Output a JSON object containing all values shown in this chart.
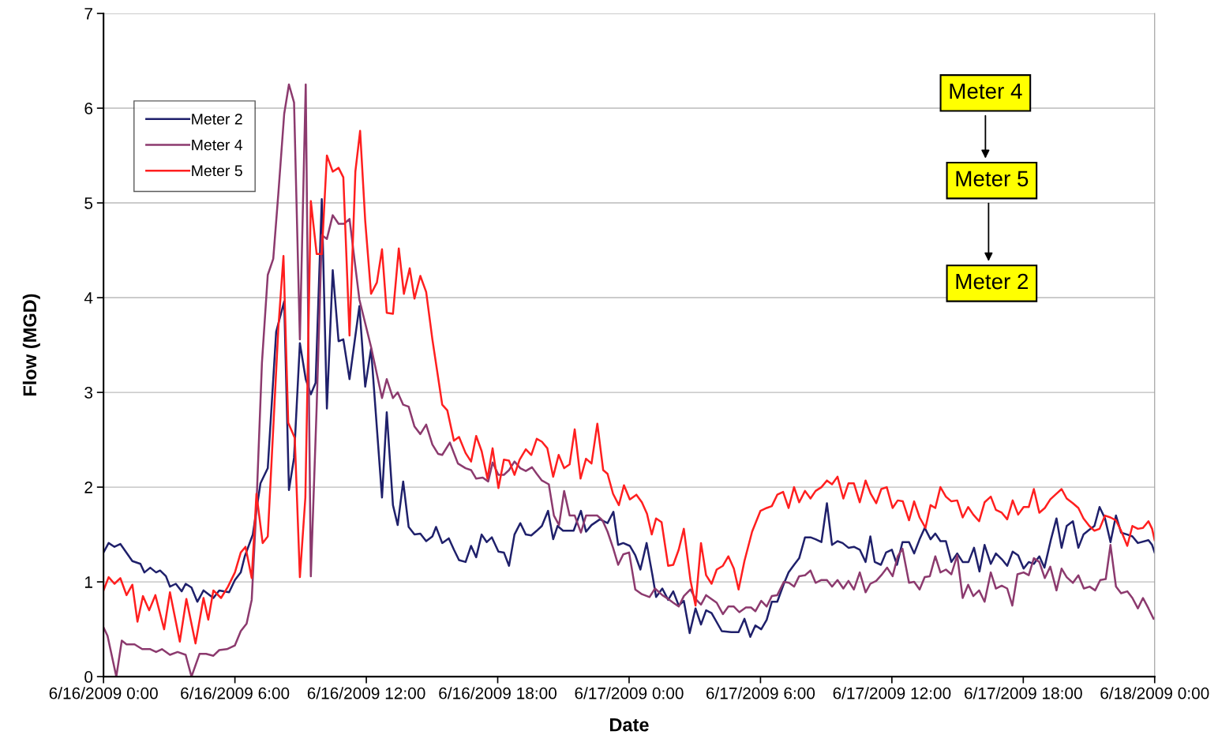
{
  "chart_data": {
    "type": "line",
    "xlabel": "Date",
    "ylabel": "Flow (MGD)",
    "xlim": [
      "2009-06-16T00:00",
      "2009-06-18T00:00"
    ],
    "ylim": [
      0,
      7
    ],
    "yticks": [
      0,
      1,
      2,
      3,
      4,
      5,
      6,
      7
    ],
    "xticks": [
      {
        "value": "2009-06-16T00:00",
        "label": "6/16/2009 0:00"
      },
      {
        "value": "2009-06-16T06:00",
        "label": "6/16/2009 6:00"
      },
      {
        "value": "2009-06-16T12:00",
        "label": "6/16/2009 12:00"
      },
      {
        "value": "2009-06-16T18:00",
        "label": "6/16/2009 18:00"
      },
      {
        "value": "2009-06-17T00:00",
        "label": "6/17/2009 0:00"
      },
      {
        "value": "2009-06-17T06:00",
        "label": "6/17/2009 6:00"
      },
      {
        "value": "2009-06-17T12:00",
        "label": "6/17/2009 12:00"
      },
      {
        "value": "2009-06-17T18:00",
        "label": "6/17/2009 18:00"
      },
      {
        "value": "2009-06-18T00:00",
        "label": "6/18/2009 0:00"
      }
    ],
    "grid": "y",
    "legend": "top left",
    "marker": "none",
    "line_style": "solid",
    "annotations": [
      "Meter 4",
      "Meter 5",
      "Meter 2"
    ],
    "series": [
      {
        "name": "Meter 2",
        "color": "#1f206b",
        "x": [
          "2009-06-16T00:00",
          "2009-06-16T00:14",
          "2009-06-16T00:30",
          "2009-06-16T00:46",
          "2009-06-16T01:19",
          "2009-06-16T01:41",
          "2009-06-16T01:52",
          "2009-06-16T02:08",
          "2009-06-16T02:24",
          "2009-06-16T02:35",
          "2009-06-16T02:51",
          "2009-06-16T03:02",
          "2009-06-16T03:18",
          "2009-06-16T03:34",
          "2009-06-16T03:45",
          "2009-06-16T04:01",
          "2009-06-16T04:17",
          "2009-06-16T04:34",
          "2009-06-16T05:01",
          "2009-06-16T05:17",
          "2009-06-16T05:44",
          "2009-06-16T06:00",
          "2009-06-16T06:16",
          "2009-06-16T06:27",
          "2009-06-16T06:49",
          "2009-06-16T07:10",
          "2009-06-16T07:30",
          "2009-06-16T07:53",
          "2009-06-16T08:15",
          "2009-06-16T08:28",
          "2009-06-16T08:42",
          "2009-06-16T08:58",
          "2009-06-16T09:14",
          "2009-06-16T09:28",
          "2009-06-16T09:41",
          "2009-06-16T09:58",
          "2009-06-16T10:12",
          "2009-06-16T10:28",
          "2009-06-16T10:44",
          "2009-06-16T10:57",
          "2009-06-16T11:14",
          "2009-06-16T11:41",
          "2009-06-16T11:57",
          "2009-06-16T12:13",
          "2009-06-16T12:43",
          "2009-06-16T12:56",
          "2009-06-16T13:13",
          "2009-06-16T13:26",
          "2009-06-16T13:41",
          "2009-06-16T13:56",
          "2009-06-16T14:12",
          "2009-06-16T14:28",
          "2009-06-16T14:44",
          "2009-06-16T15:01",
          "2009-06-16T15:11",
          "2009-06-16T15:28",
          "2009-06-16T15:46",
          "2009-06-16T16:00",
          "2009-06-16T16:14",
          "2009-06-16T16:32",
          "2009-06-16T16:47",
          "2009-06-16T17:01",
          "2009-06-16T17:16",
          "2009-06-16T17:30",
          "2009-06-16T17:44",
          "2009-06-16T18:02",
          "2009-06-16T18:17",
          "2009-06-16T18:31",
          "2009-06-16T18:46",
          "2009-06-16T19:02",
          "2009-06-16T19:17",
          "2009-06-16T19:32",
          "2009-06-16T19:47",
          "2009-06-16T20:01",
          "2009-06-16T20:18",
          "2009-06-16T20:32",
          "2009-06-16T20:44",
          "2009-06-16T20:59",
          "2009-06-16T21:28",
          "2009-06-16T21:48",
          "2009-06-16T22:02",
          "2009-06-16T22:17",
          "2009-06-16T22:40",
          "2009-06-16T23:01",
          "2009-06-16T23:17",
          "2009-06-16T23:30",
          "2009-06-16T23:44",
          "2009-06-17T00:02",
          "2009-06-17T00:17",
          "2009-06-17T00:31",
          "2009-06-17T00:48",
          "2009-06-17T01:04",
          "2009-06-17T01:14",
          "2009-06-17T01:31",
          "2009-06-17T01:47",
          "2009-06-17T02:01",
          "2009-06-17T02:16",
          "2009-06-17T02:30",
          "2009-06-17T02:46",
          "2009-06-17T03:02",
          "2009-06-17T03:17",
          "2009-06-17T03:31",
          "2009-06-17T03:46",
          "2009-06-17T04:14",
          "2009-06-17T04:40",
          "2009-06-17T05:00",
          "2009-06-17T05:16",
          "2009-06-17T05:32",
          "2009-06-17T05:46",
          "2009-06-17T06:02",
          "2009-06-17T06:17",
          "2009-06-17T06:31",
          "2009-06-17T06:46",
          "2009-06-17T07:04",
          "2009-06-17T07:17",
          "2009-06-17T07:32",
          "2009-06-17T07:46",
          "2009-06-17T08:02",
          "2009-06-17T08:17",
          "2009-06-17T08:31",
          "2009-06-17T08:47",
          "2009-06-17T09:02",
          "2009-06-17T09:16",
          "2009-06-17T09:31",
          "2009-06-17T09:45",
          "2009-06-17T10:01",
          "2009-06-17T10:16",
          "2009-06-17T10:32",
          "2009-06-17T10:48",
          "2009-06-17T11:01",
          "2009-06-17T11:13",
          "2009-06-17T11:30",
          "2009-06-17T11:44",
          "2009-06-17T12:00",
          "2009-06-17T12:14",
          "2009-06-17T12:29",
          "2009-06-17T12:47",
          "2009-06-17T13:01",
          "2009-06-17T13:16",
          "2009-06-17T13:30",
          "2009-06-17T13:46",
          "2009-06-17T13:59",
          "2009-06-17T14:13",
          "2009-06-17T14:28",
          "2009-06-17T14:43",
          "2009-06-17T14:59",
          "2009-06-17T15:14",
          "2009-06-17T15:30",
          "2009-06-17T15:45",
          "2009-06-17T16:00",
          "2009-06-17T16:14",
          "2009-06-17T16:31",
          "2009-06-17T16:45",
          "2009-06-17T17:01",
          "2009-06-17T17:16",
          "2009-06-17T17:31",
          "2009-06-17T17:46",
          "2009-06-17T18:01",
          "2009-06-17T18:15",
          "2009-06-17T18:29",
          "2009-06-17T18:44",
          "2009-06-17T18:58",
          "2009-06-17T19:16",
          "2009-06-17T19:31",
          "2009-06-17T19:45",
          "2009-06-17T19:59",
          "2009-06-17T20:16",
          "2009-06-17T20:31",
          "2009-06-17T20:45",
          "2009-06-17T21:01",
          "2009-06-17T21:15",
          "2009-06-17T21:29",
          "2009-06-17T21:44",
          "2009-06-17T21:59",
          "2009-06-17T22:14",
          "2009-06-17T22:28",
          "2009-06-17T22:45",
          "2009-06-17T22:59",
          "2009-06-17T23:14",
          "2009-06-17T23:43",
          "2009-06-17T23:53",
          "2009-06-18T00:00"
        ],
        "values": [
          1.31,
          1.41,
          1.37,
          1.4,
          1.22,
          1.19,
          1.1,
          1.15,
          1.1,
          1.12,
          1.06,
          0.95,
          0.98,
          0.9,
          0.98,
          0.94,
          0.79,
          0.91,
          0.83,
          0.91,
          0.89,
          1.02,
          1.1,
          1.27,
          1.5,
          2.04,
          2.2,
          3.64,
          3.96,
          1.97,
          2.31,
          3.52,
          3.14,
          2.98,
          3.1,
          5.04,
          2.83,
          4.29,
          3.54,
          3.56,
          3.14,
          3.91,
          3.06,
          3.46,
          1.89,
          2.79,
          1.81,
          1.6,
          2.06,
          1.58,
          1.5,
          1.51,
          1.43,
          1.48,
          1.58,
          1.41,
          1.46,
          1.34,
          1.23,
          1.21,
          1.38,
          1.26,
          1.5,
          1.42,
          1.47,
          1.32,
          1.31,
          1.17,
          1.5,
          1.62,
          1.5,
          1.49,
          1.54,
          1.59,
          1.75,
          1.45,
          1.59,
          1.54,
          1.54,
          1.75,
          1.53,
          1.6,
          1.66,
          1.62,
          1.74,
          1.39,
          1.41,
          1.38,
          1.28,
          1.13,
          1.41,
          1.07,
          0.84,
          0.93,
          0.81,
          0.9,
          0.75,
          0.8,
          0.46,
          0.72,
          0.55,
          0.7,
          0.67,
          0.48,
          0.47,
          0.47,
          0.61,
          0.42,
          0.54,
          0.5,
          0.6,
          0.79,
          0.79,
          0.98,
          1.1,
          1.18,
          1.25,
          1.47,
          1.47,
          1.45,
          1.42,
          1.83,
          1.39,
          1.43,
          1.41,
          1.36,
          1.37,
          1.34,
          1.21,
          1.48,
          1.21,
          1.18,
          1.31,
          1.34,
          1.18,
          1.42,
          1.42,
          1.3,
          1.45,
          1.57,
          1.45,
          1.51,
          1.43,
          1.43,
          1.21,
          1.3,
          1.21,
          1.21,
          1.36,
          1.11,
          1.39,
          1.19,
          1.3,
          1.24,
          1.17,
          1.32,
          1.28,
          1.14,
          1.21,
          1.19,
          1.27,
          1.15,
          1.45,
          1.67,
          1.36,
          1.59,
          1.64,
          1.36,
          1.5,
          1.55,
          1.59,
          1.79,
          1.67,
          1.42,
          1.7,
          1.52,
          1.5,
          1.48,
          1.41,
          1.44,
          1.39,
          1.31
        ]
      },
      {
        "name": "Meter 4",
        "color": "#8c3a6e",
        "x": [
          "2009-06-16T00:00",
          "2009-06-16T00:11",
          "2009-06-16T00:35",
          "2009-06-16T00:50",
          "2009-06-16T01:03",
          "2009-06-16T01:25",
          "2009-06-16T01:46",
          "2009-06-16T02:08",
          "2009-06-16T02:24",
          "2009-06-16T02:40",
          "2009-06-16T03:02",
          "2009-06-16T03:23",
          "2009-06-16T03:45",
          "2009-06-16T04:01",
          "2009-06-16T04:23",
          "2009-06-16T04:41",
          "2009-06-16T05:01",
          "2009-06-16T05:17",
          "2009-06-16T05:38",
          "2009-06-16T06:00",
          "2009-06-16T06:16",
          "2009-06-16T06:32",
          "2009-06-16T06:46",
          "2009-06-16T06:59",
          "2009-06-16T07:14",
          "2009-06-16T07:30",
          "2009-06-16T07:45",
          "2009-06-16T07:59",
          "2009-06-16T08:15",
          "2009-06-16T08:28",
          "2009-06-16T08:42",
          "2009-06-16T08:58",
          "2009-06-16T09:14",
          "2009-06-16T09:28",
          "2009-06-16T09:44",
          "2009-06-16T09:58",
          "2009-06-16T10:12",
          "2009-06-16T10:28",
          "2009-06-16T10:44",
          "2009-06-16T10:59",
          "2009-06-16T11:14",
          "2009-06-16T11:41",
          "2009-06-16T12:13",
          "2009-06-16T12:43",
          "2009-06-16T12:56",
          "2009-06-16T13:13",
          "2009-06-16T13:26",
          "2009-06-16T13:41",
          "2009-06-16T13:56",
          "2009-06-16T14:12",
          "2009-06-16T14:28",
          "2009-06-16T14:44",
          "2009-06-16T15:01",
          "2009-06-16T15:17",
          "2009-06-16T15:28",
          "2009-06-16T15:49",
          "2009-06-16T16:11",
          "2009-06-16T16:32",
          "2009-06-16T16:47",
          "2009-06-16T17:01",
          "2009-06-16T17:19",
          "2009-06-16T17:34",
          "2009-06-16T17:46",
          "2009-06-16T18:02",
          "2009-06-16T18:17",
          "2009-06-16T18:31",
          "2009-06-16T18:46",
          "2009-06-16T19:02",
          "2009-06-16T19:17",
          "2009-06-16T19:34",
          "2009-06-16T19:47",
          "2009-06-16T20:01",
          "2009-06-16T20:20",
          "2009-06-16T20:34",
          "2009-06-16T20:48",
          "2009-06-16T21:02",
          "2009-06-16T21:17",
          "2009-06-16T21:31",
          "2009-06-16T21:48",
          "2009-06-16T22:02",
          "2009-06-16T22:33",
          "2009-06-16T22:47",
          "2009-06-16T23:01",
          "2009-06-16T23:16",
          "2009-06-16T23:30",
          "2009-06-16T23:44",
          "2009-06-17T00:00",
          "2009-06-17T00:17",
          "2009-06-17T00:35",
          "2009-06-17T00:56",
          "2009-06-17T01:11",
          "2009-06-17T01:31",
          "2009-06-17T01:47",
          "2009-06-17T02:01",
          "2009-06-17T02:16",
          "2009-06-17T02:30",
          "2009-06-17T02:48",
          "2009-06-17T03:02",
          "2009-06-17T03:17",
          "2009-06-17T03:31",
          "2009-06-17T04:00",
          "2009-06-17T04:17",
          "2009-06-17T04:32",
          "2009-06-17T04:47",
          "2009-06-17T05:02",
          "2009-06-17T05:20",
          "2009-06-17T05:34",
          "2009-06-17T05:46",
          "2009-06-17T06:02",
          "2009-06-17T06:17",
          "2009-06-17T06:31",
          "2009-06-17T06:46",
          "2009-06-17T07:04",
          "2009-06-17T07:18",
          "2009-06-17T07:32",
          "2009-06-17T07:46",
          "2009-06-17T08:02",
          "2009-06-17T08:17",
          "2009-06-17T08:31",
          "2009-06-17T08:47",
          "2009-06-17T09:02",
          "2009-06-17T09:16",
          "2009-06-17T09:31",
          "2009-06-17T09:47",
          "2009-06-17T10:01",
          "2009-06-17T10:16",
          "2009-06-17T10:32",
          "2009-06-17T10:48",
          "2009-06-17T11:01",
          "2009-06-17T11:17",
          "2009-06-17T11:31",
          "2009-06-17T11:47",
          "2009-06-17T12:02",
          "2009-06-17T12:16",
          "2009-06-17T12:29",
          "2009-06-17T12:47",
          "2009-06-17T13:01",
          "2009-06-17T13:16",
          "2009-06-17T13:30",
          "2009-06-17T13:44",
          "2009-06-17T13:59",
          "2009-06-17T14:13",
          "2009-06-17T14:28",
          "2009-06-17T14:43",
          "2009-06-17T14:59",
          "2009-06-17T15:14",
          "2009-06-17T15:29",
          "2009-06-17T15:43",
          "2009-06-17T15:59",
          "2009-06-17T16:14",
          "2009-06-17T16:31",
          "2009-06-17T16:45",
          "2009-06-17T17:01",
          "2009-06-17T17:16",
          "2009-06-17T17:30",
          "2009-06-17T17:44",
          "2009-06-17T18:01",
          "2009-06-17T18:15",
          "2009-06-17T18:29",
          "2009-06-17T18:44",
          "2009-06-17T18:59",
          "2009-06-17T19:14",
          "2009-06-17T19:31",
          "2009-06-17T19:45",
          "2009-06-17T19:59",
          "2009-06-17T20:16",
          "2009-06-17T20:31",
          "2009-06-17T20:46",
          "2009-06-17T21:02",
          "2009-06-17T21:17",
          "2009-06-17T21:31",
          "2009-06-17T21:46",
          "2009-06-17T21:59",
          "2009-06-17T22:14",
          "2009-06-17T22:28",
          "2009-06-17T22:45",
          "2009-06-17T22:59",
          "2009-06-17T23:14",
          "2009-06-17T23:28",
          "2009-06-17T23:43",
          "2009-06-17T23:57",
          "2009-06-18T00:00"
        ],
        "values": [
          0.52,
          0.43,
          0,
          0.38,
          0.34,
          0.34,
          0.29,
          0.29,
          0.26,
          0.29,
          0.23,
          0.26,
          0.23,
          0,
          0.24,
          0.24,
          0.22,
          0.28,
          0.29,
          0.33,
          0.48,
          0.56,
          0.81,
          1.81,
          3.31,
          4.24,
          4.41,
          5.1,
          5.94,
          6.25,
          6.06,
          3.56,
          6.25,
          1.06,
          2.85,
          4.66,
          4.62,
          4.87,
          4.78,
          4.78,
          4.83,
          3.98,
          3.48,
          2.94,
          3.14,
          2.94,
          3.0,
          2.87,
          2.85,
          2.64,
          2.56,
          2.66,
          2.45,
          2.35,
          2.34,
          2.47,
          2.25,
          2.2,
          2.18,
          2.09,
          2.1,
          2.06,
          2.26,
          2.13,
          2.13,
          2.18,
          2.27,
          2.2,
          2.17,
          2.21,
          2.14,
          2.07,
          2.03,
          1.7,
          1.6,
          1.96,
          1.7,
          1.7,
          1.52,
          1.7,
          1.7,
          1.65,
          1.53,
          1.36,
          1.18,
          1.29,
          1.31,
          0.92,
          0.87,
          0.84,
          0.93,
          0.86,
          0.82,
          0.78,
          0.74,
          0.85,
          0.92,
          0.82,
          0.76,
          0.86,
          0.78,
          0.66,
          0.74,
          0.74,
          0.68,
          0.73,
          0.73,
          0.69,
          0.8,
          0.74,
          0.85,
          0.86,
          1.0,
          0.99,
          0.95,
          1.06,
          1.07,
          1.12,
          0.99,
          1.02,
          1.02,
          0.95,
          1.02,
          0.93,
          1.01,
          0.92,
          1.1,
          0.89,
          0.98,
          1.01,
          1.07,
          1.15,
          1.06,
          1.27,
          1.35,
          0.99,
          1.0,
          0.92,
          1.05,
          1.06,
          1.27,
          1.1,
          1.13,
          1.08,
          1.28,
          0.83,
          0.97,
          0.85,
          0.91,
          0.79,
          1.1,
          0.93,
          0.96,
          0.93,
          0.75,
          1.08,
          1.1,
          1.07,
          1.25,
          1.21,
          1.04,
          1.16,
          0.91,
          1.14,
          1.05,
          0.99,
          1.07,
          0.93,
          0.95,
          0.91,
          1.02,
          1.03,
          1.39,
          0.95,
          0.88,
          0.9,
          0.83,
          0.72,
          0.83,
          0.72,
          0.61,
          0.62
        ]
      },
      {
        "name": "Meter 5",
        "color": "#ff1f1f",
        "x": [
          "2009-06-16T00:00",
          "2009-06-16T00:14",
          "2009-06-16T00:30",
          "2009-06-16T00:46",
          "2009-06-16T01:03",
          "2009-06-16T01:19",
          "2009-06-16T01:33",
          "2009-06-16T01:48",
          "2009-06-16T02:05",
          "2009-06-16T02:22",
          "2009-06-16T02:46",
          "2009-06-16T03:02",
          "2009-06-16T03:29",
          "2009-06-16T03:47",
          "2009-06-16T04:12",
          "2009-06-16T04:34",
          "2009-06-16T04:47",
          "2009-06-16T05:01",
          "2009-06-16T05:22",
          "2009-06-16T05:41",
          "2009-06-16T06:00",
          "2009-06-16T06:16",
          "2009-06-16T06:29",
          "2009-06-16T06:46",
          "2009-06-16T06:59",
          "2009-06-16T07:16",
          "2009-06-16T07:30",
          "2009-06-16T07:59",
          "2009-06-16T08:13",
          "2009-06-16T08:26",
          "2009-06-16T08:44",
          "2009-06-16T08:58",
          "2009-06-16T09:13",
          "2009-06-16T09:28",
          "2009-06-16T09:44",
          "2009-06-16T09:58",
          "2009-06-16T10:12",
          "2009-06-16T10:28",
          "2009-06-16T10:44",
          "2009-06-16T10:57",
          "2009-06-16T11:14",
          "2009-06-16T11:30",
          "2009-06-16T11:43",
          "2009-06-16T11:57",
          "2009-06-16T12:13",
          "2009-06-16T12:29",
          "2009-06-16T12:43",
          "2009-06-16T12:56",
          "2009-06-16T13:13",
          "2009-06-16T13:29",
          "2009-06-16T13:43",
          "2009-06-16T13:59",
          "2009-06-16T14:12",
          "2009-06-16T14:28",
          "2009-06-16T14:44",
          "2009-06-16T15:01",
          "2009-06-16T15:28",
          "2009-06-16T15:42",
          "2009-06-16T16:00",
          "2009-06-16T16:14",
          "2009-06-16T16:32",
          "2009-06-16T16:47",
          "2009-06-16T17:01",
          "2009-06-16T17:16",
          "2009-06-16T17:32",
          "2009-06-16T17:46",
          "2009-06-16T18:02",
          "2009-06-16T18:17",
          "2009-06-16T18:31",
          "2009-06-16T18:46",
          "2009-06-16T19:00",
          "2009-06-16T19:17",
          "2009-06-16T19:32",
          "2009-06-16T19:47",
          "2009-06-16T20:01",
          "2009-06-16T20:16",
          "2009-06-16T20:32",
          "2009-06-16T20:47",
          "2009-06-16T21:02",
          "2009-06-16T21:17",
          "2009-06-16T21:31",
          "2009-06-16T21:47",
          "2009-06-16T22:02",
          "2009-06-16T22:17",
          "2009-06-16T22:33",
          "2009-06-16T22:49",
          "2009-06-16T23:01",
          "2009-06-16T23:16",
          "2009-06-16T23:32",
          "2009-06-16T23:46",
          "2009-06-17T00:02",
          "2009-06-17T00:20",
          "2009-06-17T00:35",
          "2009-06-17T00:49",
          "2009-06-17T01:02",
          "2009-06-17T01:14",
          "2009-06-17T01:29",
          "2009-06-17T01:47",
          "2009-06-17T02:01",
          "2009-06-17T02:16",
          "2009-06-17T02:30",
          "2009-06-17T02:48",
          "2009-06-17T03:02",
          "2009-06-17T03:17",
          "2009-06-17T03:31",
          "2009-06-17T03:46",
          "2009-06-17T04:00",
          "2009-06-17T04:17",
          "2009-06-17T04:32",
          "2009-06-17T04:47",
          "2009-06-17T05:00",
          "2009-06-17T05:16",
          "2009-06-17T05:37",
          "2009-06-17T06:00",
          "2009-06-17T06:17",
          "2009-06-17T06:31",
          "2009-06-17T06:46",
          "2009-06-17T07:02",
          "2009-06-17T07:17",
          "2009-06-17T07:32",
          "2009-06-17T07:46",
          "2009-06-17T08:02",
          "2009-06-17T08:17",
          "2009-06-17T08:31",
          "2009-06-17T08:47",
          "2009-06-17T09:02",
          "2009-06-17T09:16",
          "2009-06-17T09:31",
          "2009-06-17T09:47",
          "2009-06-17T10:01",
          "2009-06-17T10:16",
          "2009-06-17T10:32",
          "2009-06-17T10:48",
          "2009-06-17T11:02",
          "2009-06-17T11:17",
          "2009-06-17T11:31",
          "2009-06-17T11:46",
          "2009-06-17T12:02",
          "2009-06-17T12:16",
          "2009-06-17T12:30",
          "2009-06-17T12:47",
          "2009-06-17T13:01",
          "2009-06-17T13:16",
          "2009-06-17T13:32",
          "2009-06-17T13:46",
          "2009-06-17T13:59",
          "2009-06-17T14:13",
          "2009-06-17T14:28",
          "2009-06-17T14:43",
          "2009-06-17T14:59",
          "2009-06-17T15:14",
          "2009-06-17T15:29",
          "2009-06-17T15:43",
          "2009-06-17T15:59",
          "2009-06-17T16:14",
          "2009-06-17T16:31",
          "2009-06-17T16:45",
          "2009-06-17T17:01",
          "2009-06-17T17:16",
          "2009-06-17T17:31",
          "2009-06-17T17:46",
          "2009-06-17T18:01",
          "2009-06-17T18:15",
          "2009-06-17T18:29",
          "2009-06-17T18:44",
          "2009-06-17T18:59",
          "2009-06-17T19:14",
          "2009-06-17T19:28",
          "2009-06-17T19:45",
          "2009-06-17T19:59",
          "2009-06-17T20:16",
          "2009-06-17T20:31",
          "2009-06-17T20:45",
          "2009-06-17T21:01",
          "2009-06-17T21:15",
          "2009-06-17T21:29",
          "2009-06-17T21:44",
          "2009-06-17T21:59",
          "2009-06-17T22:14",
          "2009-06-17T22:28",
          "2009-06-17T22:45",
          "2009-06-17T22:59",
          "2009-06-17T23:14",
          "2009-06-17T23:28",
          "2009-06-17T23:43",
          "2009-06-17T23:53",
          "2009-06-18T00:00"
        ],
        "values": [
          0.91,
          1.05,
          0.98,
          1.04,
          0.86,
          0.97,
          0.58,
          0.85,
          0.7,
          0.86,
          0.5,
          0.89,
          0.37,
          0.82,
          0.35,
          0.83,
          0.6,
          0.91,
          0.83,
          0.95,
          1.1,
          1.31,
          1.37,
          1.04,
          1.93,
          1.41,
          1.48,
          3.68,
          4.44,
          2.68,
          2.52,
          1.05,
          1.89,
          5.02,
          4.46,
          4.46,
          5.5,
          5.33,
          5.37,
          5.27,
          3.6,
          5.33,
          5.76,
          4.81,
          4.04,
          4.16,
          4.51,
          3.84,
          3.83,
          4.52,
          4.04,
          4.31,
          3.99,
          4.23,
          4.06,
          3.56,
          2.87,
          2.81,
          2.49,
          2.53,
          2.36,
          2.27,
          2.54,
          2.38,
          2.09,
          2.41,
          1.99,
          2.29,
          2.28,
          2.13,
          2.29,
          2.4,
          2.34,
          2.51,
          2.48,
          2.41,
          2.11,
          2.34,
          2.2,
          2.24,
          2.61,
          2.09,
          2.3,
          2.25,
          2.67,
          2.18,
          2.14,
          1.93,
          1.81,
          2.02,
          1.87,
          1.92,
          1.84,
          1.72,
          1.5,
          1.67,
          1.63,
          1.17,
          1.18,
          1.34,
          1.56,
          1.02,
          0.75,
          1.41,
          1.07,
          0.98,
          1.13,
          1.17,
          1.27,
          1.14,
          0.92,
          1.22,
          1.53,
          1.75,
          1.78,
          1.8,
          1.92,
          1.95,
          1.78,
          2.0,
          1.84,
          1.96,
          1.88,
          1.96,
          2.0,
          2.07,
          2.03,
          2.11,
          1.88,
          2.04,
          2.04,
          1.84,
          2.07,
          1.93,
          1.83,
          1.98,
          2.0,
          1.78,
          1.86,
          1.85,
          1.65,
          1.85,
          1.68,
          1.57,
          1.81,
          1.78,
          2.0,
          1.9,
          1.85,
          1.86,
          1.68,
          1.79,
          1.71,
          1.64,
          1.84,
          1.9,
          1.76,
          1.73,
          1.66,
          1.86,
          1.71,
          1.79,
          1.79,
          1.98,
          1.73,
          1.78,
          1.87,
          1.92,
          1.98,
          1.88,
          1.83,
          1.78,
          1.67,
          1.59,
          1.54,
          1.56,
          1.7,
          1.68,
          1.65,
          1.54,
          1.38,
          1.59,
          1.56,
          1.57,
          1.64,
          1.56,
          1.44
        ]
      }
    ]
  }
}
